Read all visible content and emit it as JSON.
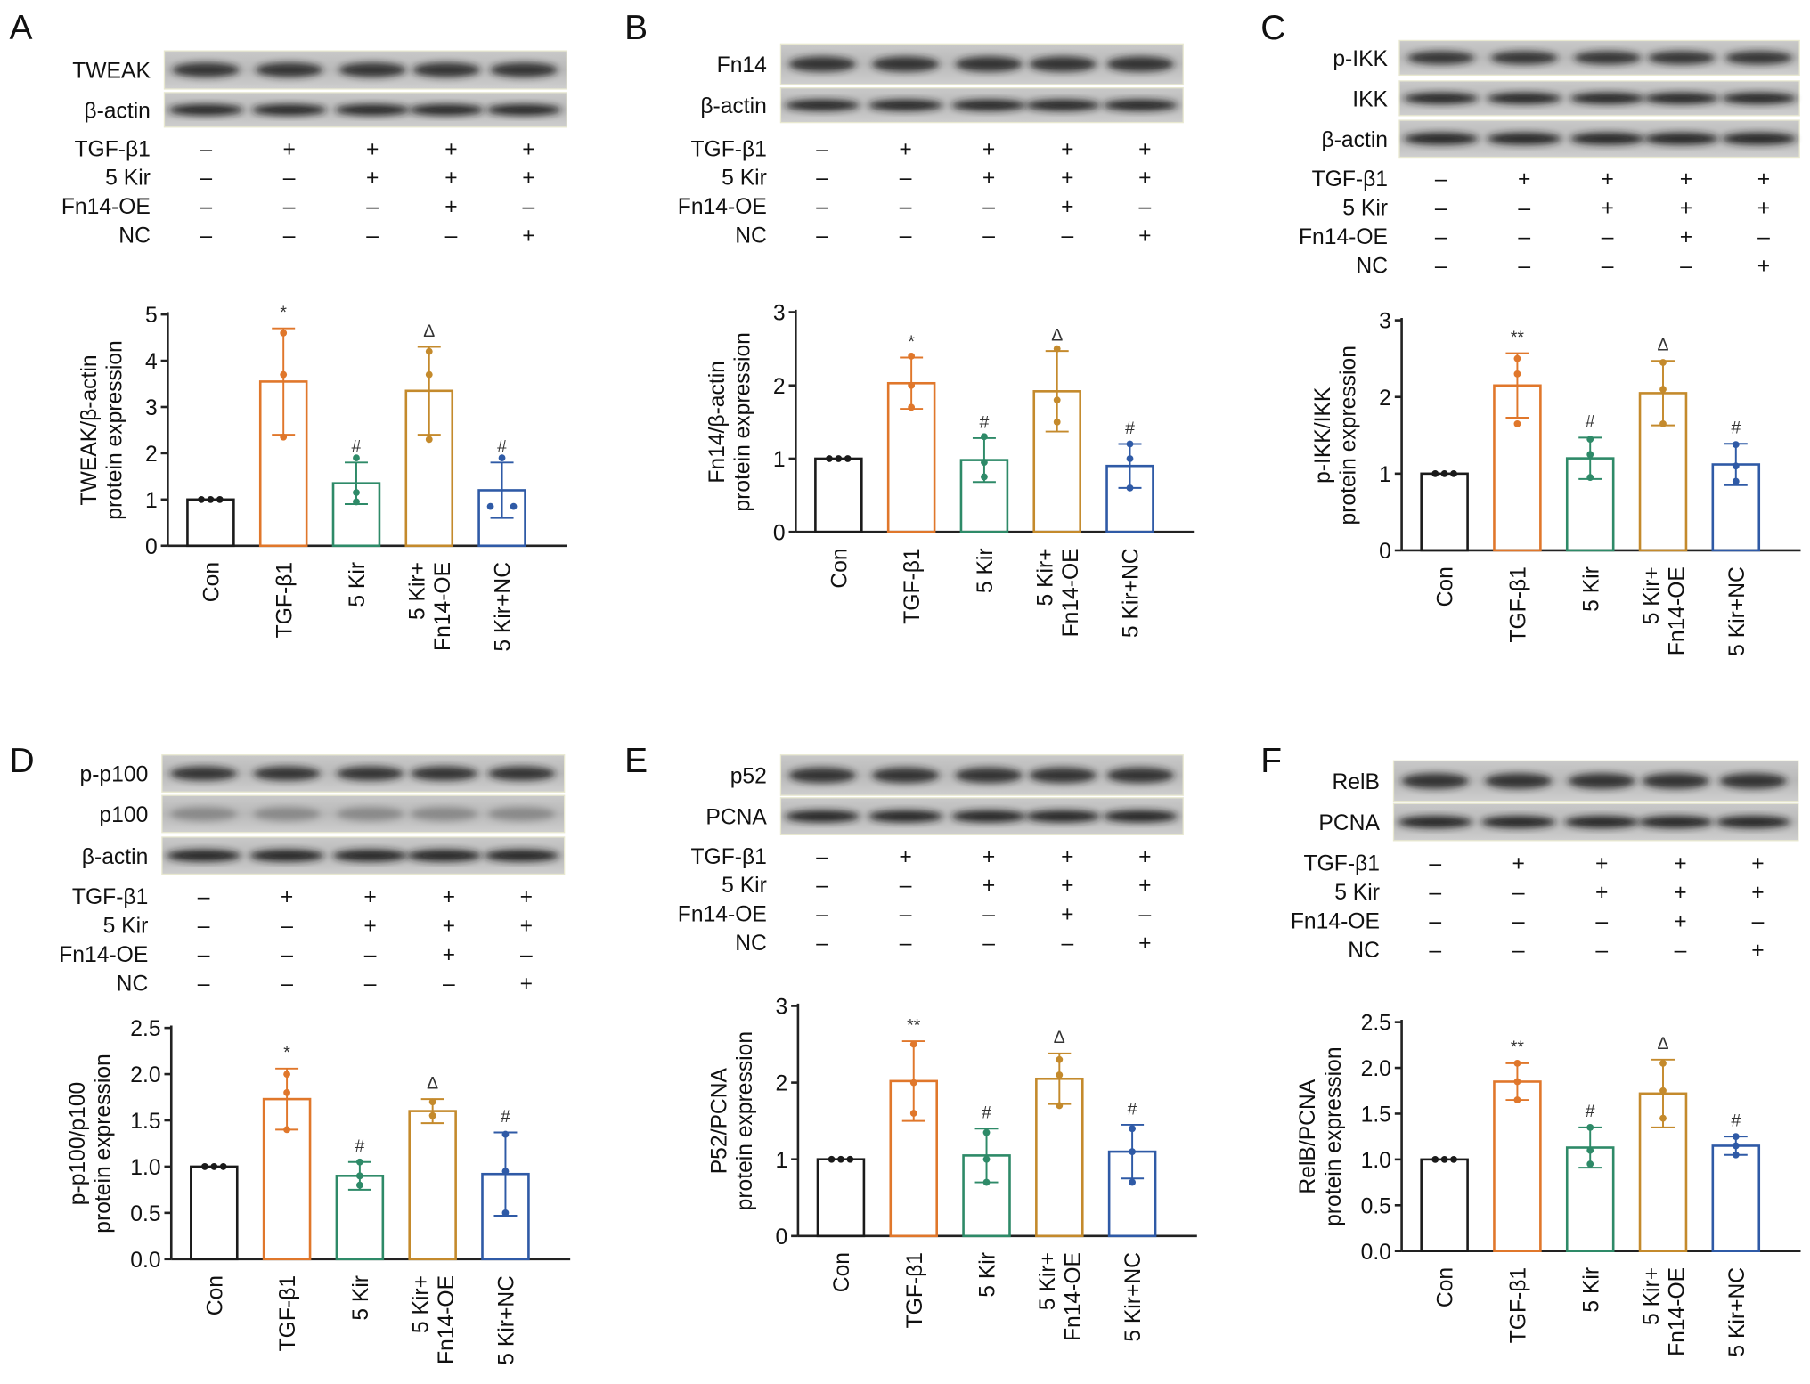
{
  "colors": {
    "Con": "#1a1a1a",
    "TGF-β1": "#e0772b",
    "5 Kir": "#2e8a68",
    "5 Kir+ Fn14-OE": "#c48a2c",
    "5 Kir+NC": "#2f5aa6"
  },
  "groups": [
    "Con",
    "TGF-β1",
    "5 Kir",
    "5 Kir+|Fn14-OE",
    "5 Kir+NC"
  ],
  "treatments": [
    {
      "name": "TGF-β1",
      "values": [
        "–",
        "+",
        "+",
        "+",
        "+"
      ]
    },
    {
      "name": "5 Kir",
      "values": [
        "–",
        "–",
        "+",
        "+",
        "+"
      ]
    },
    {
      "name": "Fn14-OE",
      "values": [
        "–",
        "–",
        "–",
        "+",
        "–"
      ]
    },
    {
      "name": "NC",
      "values": [
        "–",
        "–",
        "–",
        "–",
        "+"
      ]
    }
  ],
  "chart_data": [
    {
      "type": "bar",
      "panel": "A",
      "blots": [
        "TWEAK",
        "β-actin"
      ],
      "ylabel": [
        "TWEAK/β-actin",
        "protein expression"
      ],
      "ylim": [
        0,
        5
      ],
      "yticks": [
        "0",
        "1",
        "2",
        "3",
        "4",
        "5"
      ],
      "values": [
        1.0,
        3.55,
        1.35,
        3.35,
        1.2
      ],
      "sd": [
        0,
        1.15,
        0.45,
        0.95,
        0.6
      ],
      "points": [
        [
          1,
          1,
          1
        ],
        [
          4.6,
          3.7,
          2.35
        ],
        [
          1.9,
          1.15,
          0.95
        ],
        [
          4.2,
          3.7,
          2.3
        ],
        [
          1.9,
          0.85,
          0.85
        ]
      ],
      "marks": [
        "",
        "*",
        "#",
        "Δ",
        "#"
      ]
    },
    {
      "type": "bar",
      "panel": "B",
      "blots": [
        "Fn14",
        "β-actin"
      ],
      "ylabel": [
        "Fn14/β-actin",
        "protein expression"
      ],
      "ylim": [
        0,
        3
      ],
      "yticks": [
        "0",
        "1",
        "2",
        "3"
      ],
      "values": [
        1.0,
        2.03,
        0.98,
        1.92,
        0.9
      ],
      "sd": [
        0,
        0.35,
        0.3,
        0.55,
        0.3
      ],
      "points": [
        [
          1,
          1,
          1
        ],
        [
          2.4,
          2.0,
          1.7
        ],
        [
          1.3,
          0.95,
          0.75
        ],
        [
          2.5,
          1.8,
          1.5
        ],
        [
          1.2,
          1.0,
          0.6
        ]
      ],
      "marks": [
        "",
        "*",
        "#",
        "Δ",
        "#"
      ]
    },
    {
      "type": "bar",
      "panel": "C",
      "blots": [
        "p-IKK",
        "IKK",
        "β-actin"
      ],
      "ylabel": [
        "p-IKK/IKK",
        "protein expression"
      ],
      "ylim": [
        0,
        3
      ],
      "yticks": [
        "0",
        "1",
        "2",
        "3"
      ],
      "values": [
        1.0,
        2.15,
        1.2,
        2.05,
        1.12
      ],
      "sd": [
        0,
        0.42,
        0.27,
        0.42,
        0.27
      ],
      "points": [
        [
          1,
          1,
          1
        ],
        [
          2.5,
          2.3,
          1.65
        ],
        [
          1.45,
          1.25,
          0.95
        ],
        [
          2.45,
          2.1,
          1.65
        ],
        [
          1.38,
          1.1,
          0.9
        ]
      ],
      "marks": [
        "",
        "**",
        "#",
        "Δ",
        "#"
      ]
    },
    {
      "type": "bar",
      "panel": "D",
      "blots": [
        "p-p100",
        "p100",
        "β-actin"
      ],
      "ylabel": [
        "p-p100/p100",
        "protein expression"
      ],
      "ylim": [
        0,
        2.5
      ],
      "yticks": [
        "0.0",
        "0.5",
        "1.0",
        "1.5",
        "2.0",
        "2.5"
      ],
      "values": [
        1.0,
        1.73,
        0.9,
        1.6,
        0.92
      ],
      "sd": [
        0,
        0.33,
        0.15,
        0.13,
        0.45
      ],
      "points": [
        [
          1,
          1,
          1
        ],
        [
          2.0,
          1.8,
          1.4
        ],
        [
          1.05,
          0.9,
          0.8
        ],
        [
          1.7,
          1.55,
          1.55
        ],
        [
          1.35,
          0.95,
          0.5
        ]
      ],
      "marks": [
        "",
        "*",
        "#",
        "Δ",
        "#"
      ]
    },
    {
      "type": "bar",
      "panel": "E",
      "blots": [
        "p52",
        "PCNA"
      ],
      "ylabel": [
        "P52/PCNA",
        "protein expression"
      ],
      "ylim": [
        0,
        3
      ],
      "yticks": [
        "0",
        "1",
        "2",
        "3"
      ],
      "values": [
        1.0,
        2.02,
        1.05,
        2.05,
        1.1
      ],
      "sd": [
        0,
        0.52,
        0.35,
        0.33,
        0.35
      ],
      "points": [
        [
          1,
          1,
          1
        ],
        [
          2.5,
          2.0,
          1.6
        ],
        [
          1.35,
          1.0,
          0.7
        ],
        [
          2.3,
          2.1,
          1.7
        ],
        [
          1.4,
          1.1,
          0.7
        ]
      ],
      "marks": [
        "",
        "**",
        "#",
        "Δ",
        "#"
      ]
    },
    {
      "type": "bar",
      "panel": "F",
      "blots": [
        "RelB",
        "PCNA"
      ],
      "ylabel": [
        "RelB/PCNA",
        "protein expression"
      ],
      "ylim": [
        0,
        2.5
      ],
      "yticks": [
        "0.0",
        "0.5",
        "1.0",
        "1.5",
        "2.0",
        "2.5"
      ],
      "values": [
        1.0,
        1.85,
        1.13,
        1.72,
        1.15
      ],
      "sd": [
        0,
        0.2,
        0.22,
        0.37,
        0.1
      ],
      "points": [
        [
          1,
          1,
          1
        ],
        [
          2.05,
          1.85,
          1.65
        ],
        [
          1.35,
          1.1,
          0.95
        ],
        [
          2.05,
          1.75,
          1.45
        ],
        [
          1.25,
          1.15,
          1.05
        ]
      ],
      "marks": [
        "",
        "**",
        "#",
        "Δ",
        "#"
      ]
    }
  ]
}
